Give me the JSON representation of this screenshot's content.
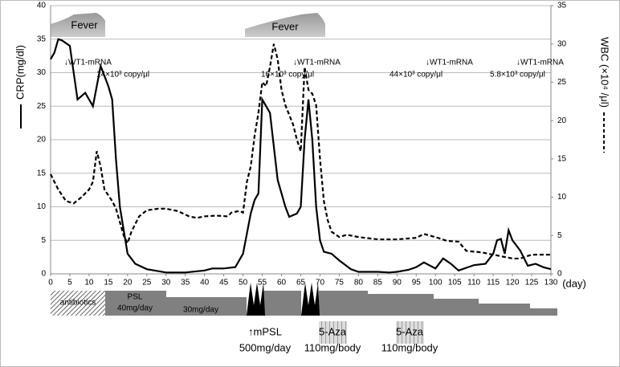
{
  "chart_data": {
    "type": "line",
    "ylabel": "CRP(mg/dl)",
    "y2label": "WBC (×10⁴ /μl)",
    "xlabel": "(day)",
    "xlim": [
      0,
      130
    ],
    "xticks": [
      0,
      5,
      10,
      15,
      20,
      25,
      30,
      35,
      40,
      45,
      50,
      55,
      60,
      65,
      70,
      75,
      80,
      85,
      90,
      95,
      100,
      105,
      110,
      115,
      120,
      125,
      130
    ],
    "ylim": [
      0,
      40
    ],
    "yticks": [
      0,
      5,
      10,
      15,
      20,
      25,
      30,
      35,
      40
    ],
    "y2lim": [
      0,
      35
    ],
    "y2ticks": [
      0,
      5,
      10,
      15,
      20,
      25,
      30,
      35
    ],
    "grid": true,
    "series": [
      {
        "color": "#000000",
        "style": "solid",
        "x": [
          0,
          1,
          2,
          3,
          5,
          7,
          9,
          11,
          12,
          13,
          15,
          16,
          17,
          18,
          20,
          22,
          25,
          30,
          35,
          40,
          42,
          45,
          48,
          50,
          51,
          52,
          53,
          54,
          55,
          57,
          59,
          61,
          62,
          64,
          65,
          66,
          67,
          68,
          69,
          70,
          71,
          73,
          75,
          78,
          80,
          85,
          88,
          90,
          93,
          95,
          97,
          100,
          102,
          104,
          106,
          108,
          110,
          113,
          115,
          116,
          117,
          118,
          119,
          120,
          122,
          124,
          126,
          128,
          130
        ],
        "values": [
          32,
          33,
          35,
          34.8,
          34,
          26,
          27,
          25,
          28,
          31,
          28,
          26,
          17,
          10,
          3,
          1.5,
          0.7,
          0.2,
          0.2,
          0.5,
          0.8,
          0.8,
          1,
          3,
          6,
          9,
          11,
          12,
          26,
          24,
          14,
          10,
          8.5,
          9,
          10,
          20,
          26,
          20,
          10,
          5,
          3.3,
          3,
          2,
          0.7,
          0.3,
          0.3,
          0.2,
          0.3,
          0.6,
          1,
          1.7,
          0.8,
          2.3,
          1.5,
          0.5,
          0.9,
          1.3,
          1.5,
          3,
          5,
          5.2,
          3,
          6.5,
          5,
          3.5,
          1.2,
          1.5,
          1,
          0.7
        ]
      },
      {
        "color": "#000000",
        "style": "dashed",
        "axis": "y2",
        "x": [
          0,
          2,
          4,
          6,
          8,
          10,
          11,
          12,
          13,
          14,
          16,
          17,
          19,
          20,
          21,
          23,
          25,
          28,
          30,
          33,
          36,
          38,
          40,
          43,
          46,
          47,
          49,
          50,
          51,
          52,
          53,
          54,
          55,
          56,
          57,
          58,
          59,
          60,
          61,
          63,
          64,
          65,
          66,
          67,
          68,
          69,
          70,
          71,
          72,
          73,
          75,
          77,
          80,
          85,
          90,
          95,
          97,
          100,
          103,
          106,
          108,
          112,
          115,
          118,
          120,
          122,
          125,
          130
        ],
        "values": [
          13,
          11,
          9.5,
          9.2,
          10,
          11,
          12,
          16,
          14,
          11,
          9.5,
          8.5,
          5,
          4,
          5.5,
          7.5,
          8.3,
          8.5,
          8.5,
          8.2,
          7.5,
          7.3,
          7.5,
          7.6,
          7.5,
          8,
          8.2,
          8,
          12,
          14,
          18,
          21,
          25,
          24.5,
          27,
          30,
          28,
          24,
          22,
          19.5,
          17.5,
          16,
          27,
          24,
          23.5,
          22,
          15,
          9.5,
          7,
          5.5,
          4.8,
          5.1,
          4.8,
          4.5,
          4.5,
          4.7,
          5.2,
          4.8,
          4.3,
          4.2,
          3,
          2.8,
          2.5,
          2.2,
          2,
          2,
          2.5,
          2.5
        ]
      }
    ],
    "fever_labels": [
      "Fever",
      "Fever"
    ],
    "annotations": [
      {
        "label": "↓WT1-mRNA",
        "sublabel": "14×10³ copy/μl"
      },
      {
        "label": "↓WT1-mRNA",
        "sublabel": "16×10³ copy/μl"
      },
      {
        "label": "↓WT1-mRNA",
        "sublabel": "44×10³ copy/μl"
      },
      {
        "label": "↓WT1-mRNA",
        "sublabel": "5.8×10³ copy/μl"
      }
    ],
    "treatment_labels": [
      "antibiotics",
      "PSL",
      "40mg/day",
      "30mg/day",
      "↑mPSL",
      "500mg/day",
      "5-Aza",
      "110mg/body",
      "5-Aza",
      "110mg/body"
    ]
  }
}
